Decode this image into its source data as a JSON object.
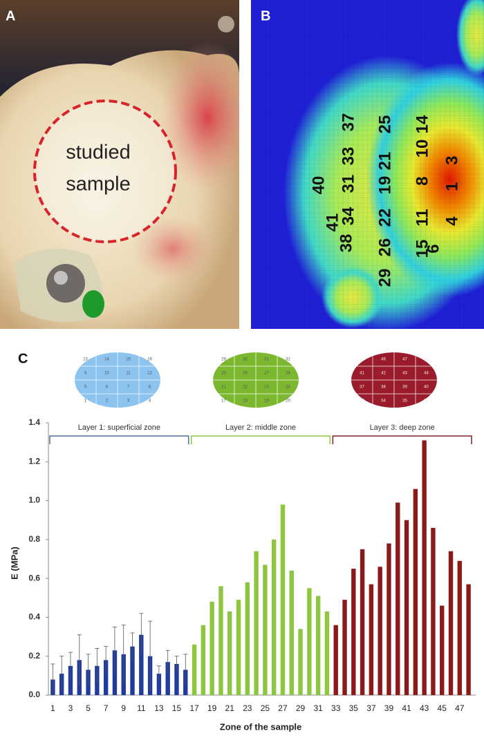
{
  "panels": {
    "A": {
      "label": "A",
      "annotation": [
        "studied",
        "sample"
      ]
    },
    "B": {
      "label": "B",
      "zones": [
        40,
        41,
        38,
        34,
        37,
        33,
        31,
        25,
        21,
        19,
        22,
        26,
        29,
        14,
        10,
        8,
        11,
        15,
        3,
        1,
        4,
        6
      ]
    },
    "C": {
      "label": "C"
    }
  },
  "zone_maps": [
    {
      "color": "#8cc3ef",
      "rows": [
        [
          13,
          14,
          15,
          16
        ],
        [
          9,
          10,
          11,
          12
        ],
        [
          5,
          6,
          7,
          8
        ],
        [
          1,
          2,
          3,
          4
        ]
      ]
    },
    {
      "color": "#7cb82f",
      "rows": [
        [
          29,
          30,
          31,
          32
        ],
        [
          25,
          26,
          27,
          28
        ],
        [
          21,
          22,
          23,
          24
        ],
        [
          17,
          18,
          19,
          20
        ]
      ]
    },
    {
      "color": "#9a1c2c",
      "rows": [
        [
          45,
          46,
          47,
          48
        ],
        [
          41,
          42,
          43,
          44
        ],
        [
          37,
          38,
          39,
          40
        ],
        [
          33,
          34,
          35,
          36
        ]
      ]
    }
  ],
  "chart_data": {
    "type": "bar",
    "ylabel": "E (MPa)",
    "xlabel": "Zone of the sample",
    "categories": [
      1,
      null,
      3,
      null,
      5,
      null,
      7,
      null,
      9,
      null,
      11,
      null,
      13,
      null,
      15,
      null,
      17,
      null,
      19,
      null,
      21,
      null,
      23,
      null,
      25,
      null,
      27,
      null,
      29,
      null,
      31,
      null,
      33,
      null,
      35,
      null,
      37,
      null,
      39,
      null,
      41,
      null,
      43,
      null,
      45,
      null,
      47,
      null
    ],
    "ylim": [
      0,
      1.4
    ],
    "yticks": [
      {
        "value": 0,
        "label": "0.0"
      },
      0.2,
      0.4,
      0.6,
      0.8,
      {
        "value": 1,
        "label": "1.0"
      },
      1.2,
      1.4
    ],
    "series": [
      {
        "name": "Layer 1: superficial zone",
        "color": "#1f3c9e",
        "bracket_color": "#4f6f9c",
        "values": [
          0.08,
          0.11,
          0.15,
          0.18,
          0.13,
          0.15,
          0.18,
          0.23,
          0.21,
          0.25,
          0.31,
          0.2,
          0.11,
          0.17,
          0.16,
          0.13,
          null,
          null,
          null,
          null,
          null,
          null,
          null,
          null,
          null,
          null,
          null,
          null,
          null,
          null,
          null,
          null,
          null,
          null,
          null,
          null,
          null,
          null,
          null,
          null,
          null,
          null,
          null,
          null,
          null,
          null,
          null,
          null
        ],
        "errors": [
          0.08,
          0.09,
          0.07,
          0.13,
          0.08,
          0.09,
          0.07,
          0.12,
          0.15,
          0.07,
          0.11,
          0.18,
          0.04,
          0.06,
          0.04,
          0.08,
          null,
          null,
          null,
          null,
          null,
          null,
          null,
          null,
          null,
          null,
          null,
          null,
          null,
          null,
          null,
          null,
          null,
          null,
          null,
          null,
          null,
          null,
          null,
          null,
          null,
          null,
          null,
          null,
          null,
          null,
          null,
          null
        ]
      },
      {
        "name": "Layer 2: middle zone",
        "color": "#8dc63f",
        "bracket_color": "#8dc63f",
        "values": [
          null,
          null,
          null,
          null,
          null,
          null,
          null,
          null,
          null,
          null,
          null,
          null,
          null,
          null,
          null,
          null,
          0.26,
          0.36,
          0.48,
          0.56,
          0.43,
          0.49,
          0.58,
          0.74,
          0.67,
          0.8,
          0.98,
          0.64,
          0.34,
          0.55,
          0.51,
          0.43,
          null,
          null,
          null,
          null,
          null,
          null,
          null,
          null,
          null,
          null,
          null,
          null,
          null,
          null,
          null,
          null
        ]
      },
      {
        "name": "Layer 3: deep zone",
        "color": "#8b1a1a",
        "bracket_color": "#7b1e2a",
        "values": [
          null,
          null,
          null,
          null,
          null,
          null,
          null,
          null,
          null,
          null,
          null,
          null,
          null,
          null,
          null,
          null,
          null,
          null,
          null,
          null,
          null,
          null,
          null,
          null,
          null,
          null,
          null,
          null,
          null,
          null,
          null,
          null,
          0.36,
          0.49,
          0.65,
          0.75,
          0.57,
          0.66,
          0.78,
          0.99,
          0.9,
          1.06,
          1.31,
          0.86,
          0.46,
          0.74,
          0.69,
          0.57
        ]
      }
    ]
  }
}
